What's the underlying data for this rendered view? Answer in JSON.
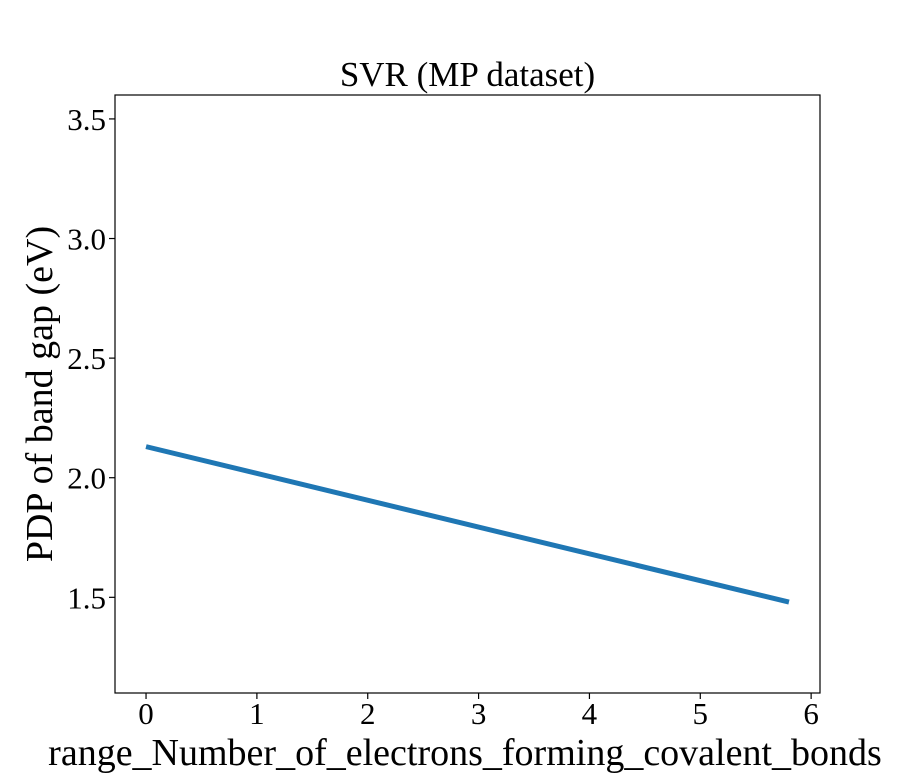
{
  "chart_data": {
    "type": "line",
    "title": "SVR (MP dataset)",
    "xlabel": "range_Number_of_electrons_forming_covalent_bonds",
    "ylabel": "PDP of band gap (eV)",
    "xlim": [
      -0.28,
      6.08
    ],
    "ylim": [
      1.1,
      3.6
    ],
    "xticks": [
      0,
      1,
      2,
      3,
      4,
      5,
      6
    ],
    "yticks": [
      1.5,
      2.0,
      2.5,
      3.0,
      3.5
    ],
    "xtick_labels": [
      "0",
      "1",
      "2",
      "3",
      "4",
      "5",
      "6"
    ],
    "ytick_labels": [
      "1.5",
      "2.0",
      "2.5",
      "3.0",
      "3.5"
    ],
    "grid": false,
    "series": [
      {
        "color": "#1f77b4",
        "x": [
          0,
          5.8
        ],
        "y": [
          2.13,
          1.48
        ]
      }
    ]
  }
}
